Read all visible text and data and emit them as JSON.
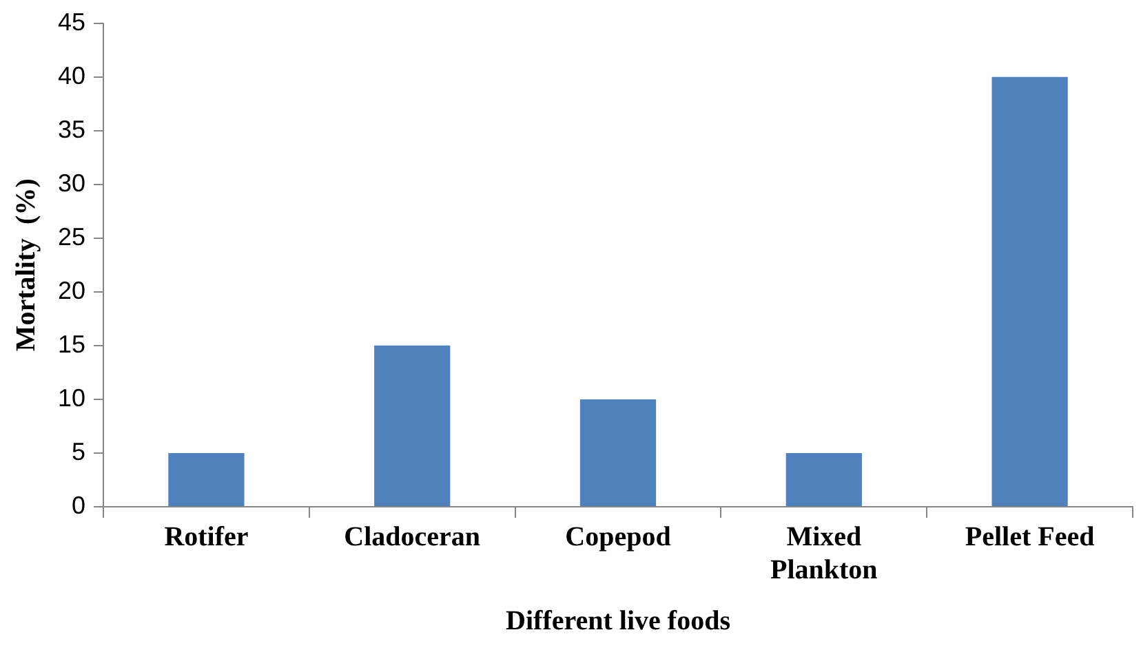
{
  "chart_data": {
    "type": "bar",
    "xlabel": "Different live foods",
    "ylabel": "Mortality  (%)",
    "categories": [
      "Rotifer",
      "Cladoceran",
      "Copepod",
      "Mixed Plankton",
      "Pellet Feed"
    ],
    "values": [
      5,
      15,
      10,
      5,
      40
    ],
    "color": "#4f81bd",
    "ylim": [
      0,
      45
    ],
    "yticks": [
      0,
      5,
      10,
      15,
      20,
      25,
      30,
      35,
      40,
      45
    ],
    "grid": false,
    "legend": false
  }
}
